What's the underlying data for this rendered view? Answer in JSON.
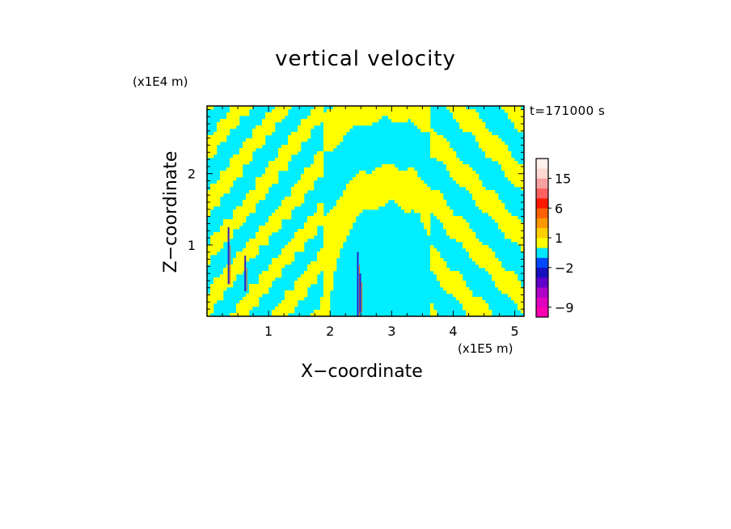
{
  "chart_data": {
    "type": "heatmap",
    "title": "vertical velocity",
    "xlabel": "X−coordinate",
    "ylabel": "Z−coordinate",
    "x_unit_label": "(x1E5 m)",
    "z_unit_label": "(x1E4 m)",
    "time_label": "t=171000 s",
    "xlim": [
      0,
      5.15
    ],
    "ylim": [
      0,
      2.95
    ],
    "x_ticks": [
      1,
      2,
      3,
      4,
      5
    ],
    "x_tick_labels": [
      "1",
      "2",
      "3",
      "4",
      "5"
    ],
    "y_ticks": [
      1,
      2
    ],
    "y_tick_labels": [
      "1",
      "2"
    ],
    "field_colors": {
      "negative_small": "#00eeff",
      "positive_small": "#ffff00",
      "strong_negative": "#3020c8",
      "strong_positive": "#ff6000"
    },
    "colorbar": {
      "levels": [
        {
          "from": -12,
          "to": -9,
          "color": "#ff00b0"
        },
        {
          "from": -9,
          "to": -6,
          "color": "#e000c0"
        },
        {
          "from": -6,
          "to": -4,
          "color": "#b000c8"
        },
        {
          "from": -4,
          "to": -3,
          "color": "#6000c8"
        },
        {
          "from": -3,
          "to": -2,
          "color": "#1810c0"
        },
        {
          "from": -2,
          "to": -1,
          "color": "#0048ff"
        },
        {
          "from": -1,
          "to": 0,
          "color": "#00e8ff"
        },
        {
          "from": 0,
          "to": 1,
          "color": "#ffff00"
        },
        {
          "from": 1,
          "to": 2,
          "color": "#ffd000"
        },
        {
          "from": 2,
          "to": 4,
          "color": "#ff9800"
        },
        {
          "from": 4,
          "to": 6,
          "color": "#ff6000"
        },
        {
          "from": 6,
          "to": 9,
          "color": "#ff1800"
        },
        {
          "from": 9,
          "to": 12,
          "color": "#ff6060"
        },
        {
          "from": 12,
          "to": 15,
          "color": "#f8a0a0"
        },
        {
          "from": 15,
          "to": 18,
          "color": "#ffd8d0"
        },
        {
          "from": 18,
          "to": 22,
          "color": "#fff0ec"
        }
      ],
      "tick_values": [
        -9,
        -2,
        1,
        6,
        15
      ],
      "tick_labels": [
        "−9",
        "−2",
        "1",
        "6",
        "15"
      ]
    }
  }
}
